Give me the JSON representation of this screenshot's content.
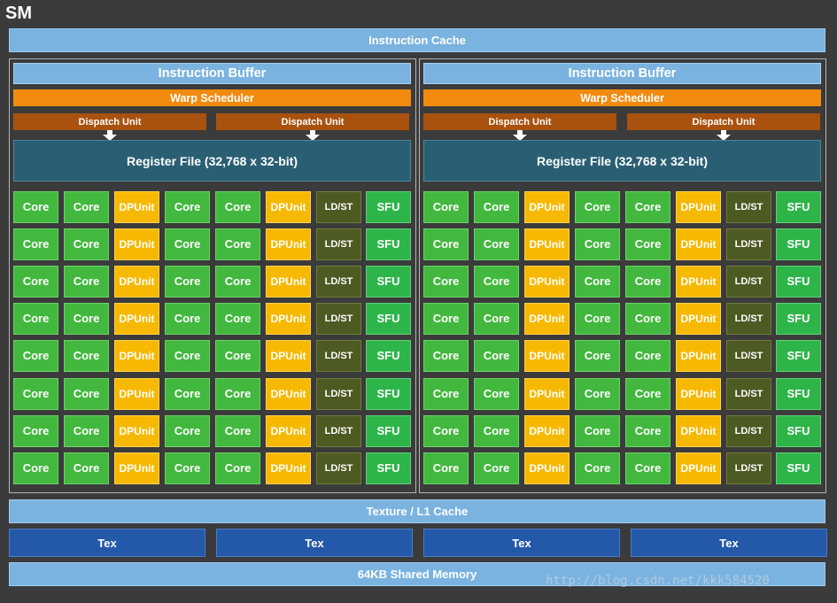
{
  "sm_label": "SM",
  "instruction_cache": "Instruction Cache",
  "partition": {
    "instruction_buffer": "Instruction Buffer",
    "warp_scheduler": "Warp Scheduler",
    "dispatch_unit": "Dispatch Unit",
    "register_file": "Register File (32,768 x 32-bit)",
    "row_units": [
      "Core",
      "Core",
      "DP Unit",
      "Core",
      "Core",
      "DP Unit",
      "LD/ST",
      "SFU"
    ],
    "dp_line1": "DP",
    "dp_line2": "Unit",
    "row_count": 8
  },
  "texture_l1_cache": "Texture / L1 Cache",
  "tex_units": [
    "Tex",
    "Tex",
    "Tex",
    "Tex"
  ],
  "shared_memory": "64KB Shared Memory",
  "watermark": "http://blog.csdn.net/kkk584520",
  "colors": {
    "background": "#3b3b3b",
    "cache_blue": "#7ab3e0",
    "warp_orange": "#f08b10",
    "dispatch_brown": "#a9520f",
    "register_teal": "#2a5f73",
    "core_green": "#43b83f",
    "dp_yellow": "#f7b800",
    "ldst_olive": "#4d5a22",
    "sfu_green": "#2eb54a",
    "tex_blue": "#2458a9"
  }
}
